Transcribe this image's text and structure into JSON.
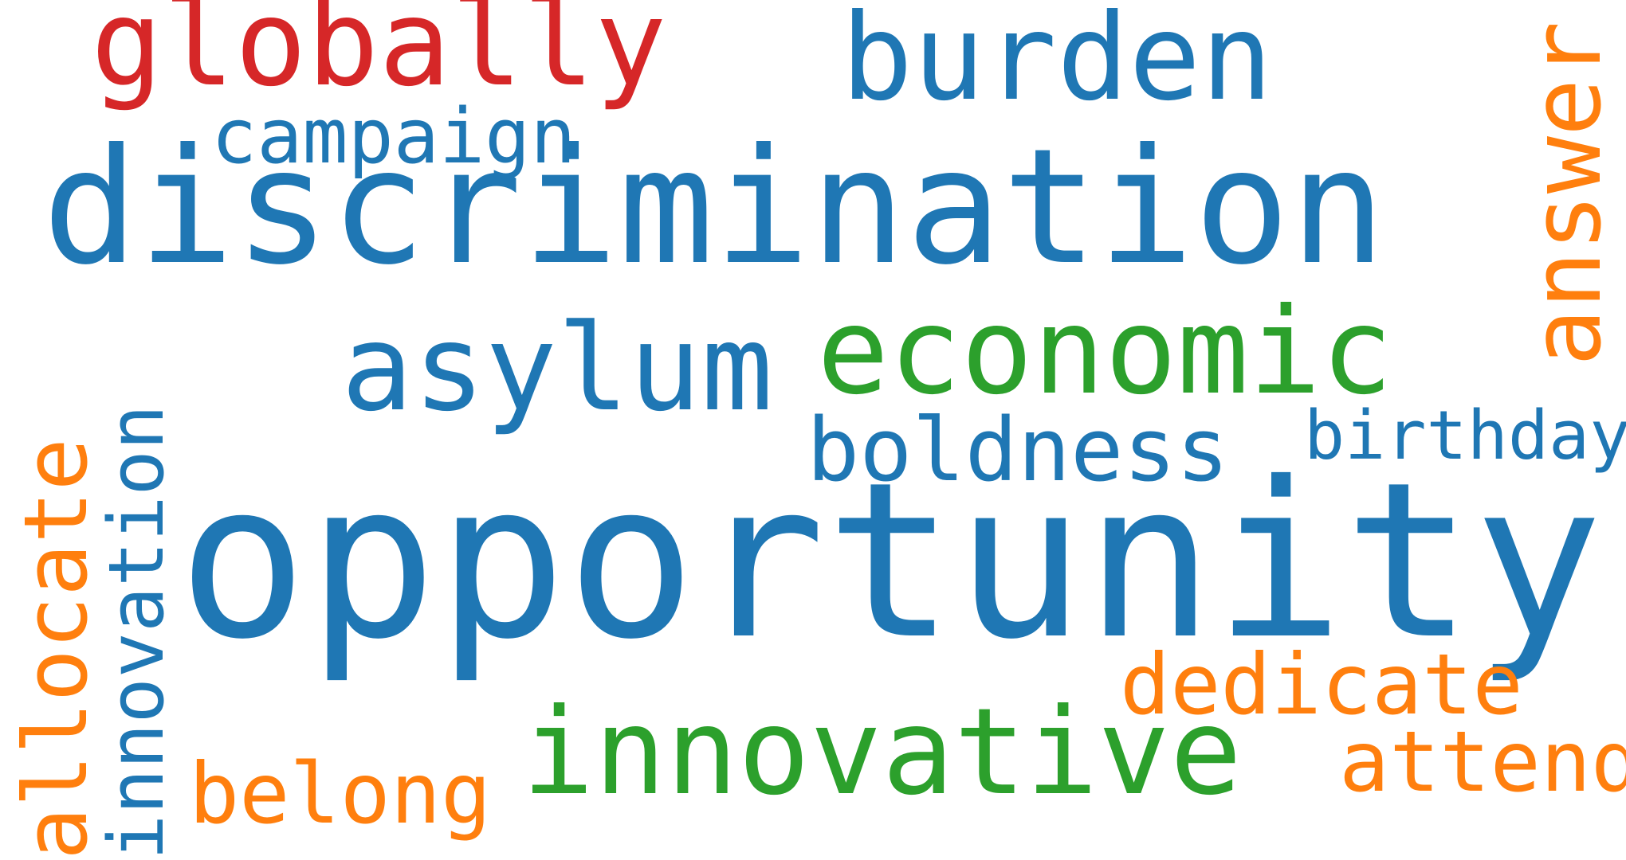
{
  "colors": {
    "background": "#ffffff",
    "blue": "#1f77b4",
    "red": "#d62728",
    "green": "#2ca02c",
    "orange": "#ff7f0e"
  },
  "words": {
    "opportunity": "opportunity",
    "discrimination": "discrimination",
    "globally": "globally",
    "burden": "burden",
    "answer": "answer",
    "campaign": "campaign",
    "asylum": "asylum",
    "economic": "economic",
    "boldness": "boldness",
    "birthday": "birthday",
    "innovation": "innovation",
    "allocate": "allocate",
    "dedicate": "dedicate",
    "innovative": "innovative",
    "belong": "belong",
    "attend": "attend"
  }
}
